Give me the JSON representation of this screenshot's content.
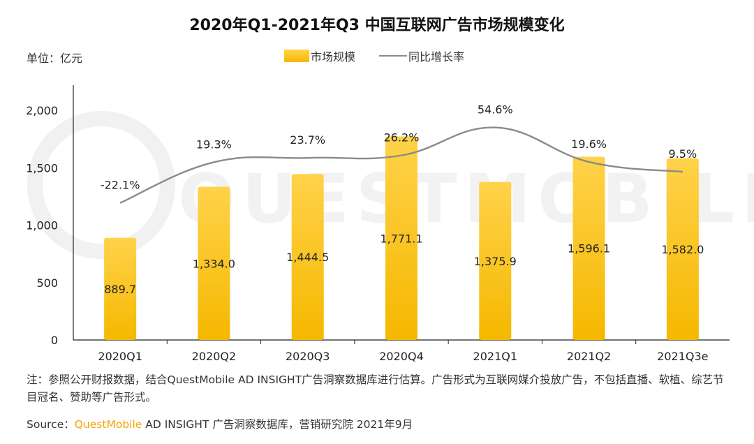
{
  "title": "2020年Q1-2021年Q3 中国互联网广告市场规模变化",
  "unit_label": "单位：亿元",
  "legend": {
    "bar_label": "市场规模",
    "line_label": "同比增长率"
  },
  "watermark": "QUESTMOBILE",
  "colors": {
    "bar_top": "#ffd24a",
    "bar_bottom": "#f5b800",
    "line": "#8a8a8a",
    "brand": "#f5a400"
  },
  "chart_data": {
    "type": "bar",
    "categories": [
      "2020Q1",
      "2020Q2",
      "2020Q3",
      "2020Q4",
      "2021Q1",
      "2021Q2",
      "2021Q3e"
    ],
    "series": [
      {
        "name": "市场规模",
        "type": "bar",
        "values": [
          889.7,
          1334.0,
          1444.5,
          1771.1,
          1375.9,
          1596.1,
          1582.0
        ],
        "labels": [
          "889.7",
          "1,334.0",
          "1,444.5",
          "1,771.1",
          "1,375.9",
          "1,596.1",
          "1,582.0"
        ]
      },
      {
        "name": "同比增长率",
        "type": "line",
        "values": [
          -22.1,
          19.3,
          23.7,
          26.2,
          54.6,
          19.6,
          9.5
        ],
        "labels": [
          "-22.1%",
          "19.3%",
          "23.7%",
          "26.2%",
          "54.6%",
          "19.6%",
          "9.5%"
        ]
      }
    ],
    "y_axis": {
      "ylim": [
        0,
        2000
      ],
      "ticks": [
        0,
        500,
        1000,
        1500,
        2000
      ],
      "tick_labels": [
        "0",
        "500",
        "1,000",
        "1,500",
        "2,000"
      ]
    },
    "y2_range": [
      -50,
      60
    ],
    "grid": false,
    "legend_position": "top-center"
  },
  "note": "注：参照公开财报数据，结合QuestMobile AD INSIGHT广告洞察数据库进行估算。广告形式为互联网媒介投放广告，不包括直播、软植、综艺节目冠名、赞助等广告形式。",
  "source": {
    "prefix": "Source：",
    "brand": "QuestMobile",
    "rest": " AD INSIGHT 广告洞察数据库，营销研究院 2021年9月"
  }
}
